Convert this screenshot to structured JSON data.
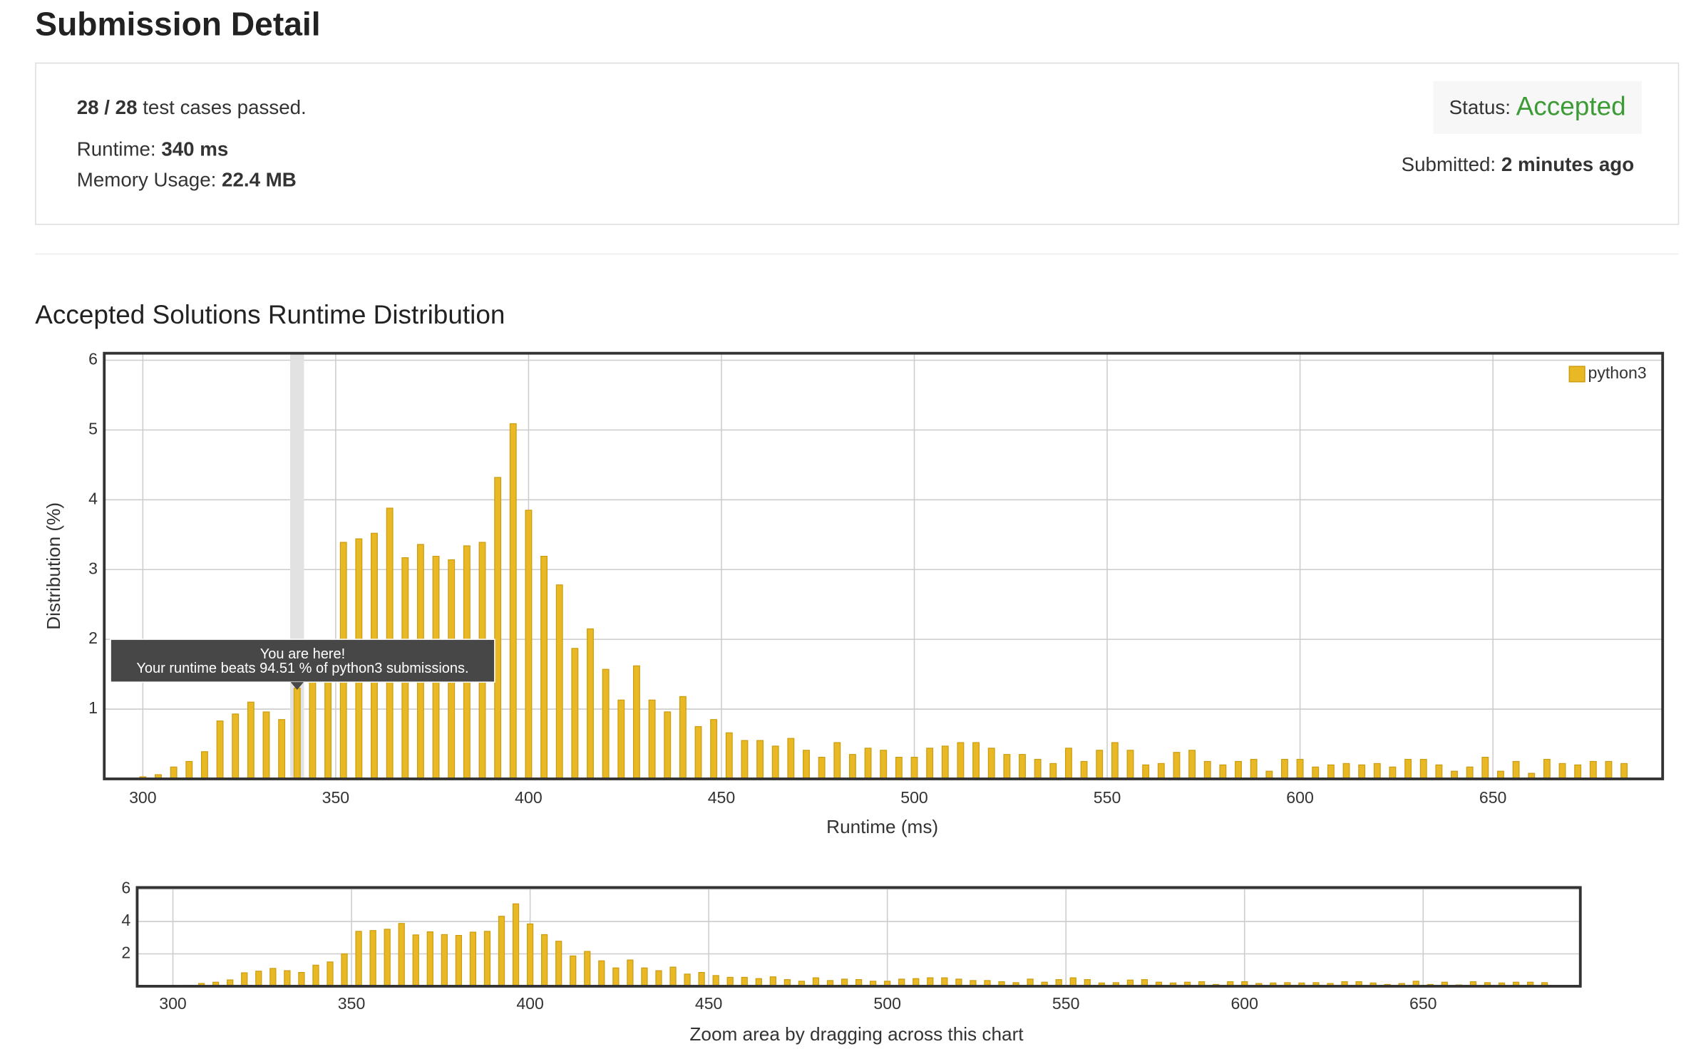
{
  "page": {
    "title": "Submission Detail",
    "passed": "28 / 28",
    "passed_suffix": "test cases passed.",
    "runtime_label": "Runtime:",
    "runtime_value": "340 ms",
    "memory_label": "Memory Usage:",
    "memory_value": "22.4 MB",
    "status_label": "Status:",
    "status_value": "Accepted",
    "submitted_label": "Submitted:",
    "submitted_value": "2 minutes ago",
    "section_title": "Accepted Solutions Runtime Distribution"
  },
  "chart_data": [
    {
      "type": "bar",
      "xlabel": "Runtime (ms)",
      "ylabel": "Distribution (%)",
      "x": [
        300,
        304,
        308,
        312,
        316,
        320,
        324,
        328,
        332,
        336,
        340,
        344,
        348,
        352,
        356,
        360,
        364,
        368,
        372,
        376,
        380,
        384,
        388,
        392,
        396,
        400,
        404,
        408,
        412,
        416,
        420,
        424,
        428,
        432,
        436,
        440,
        444,
        448,
        452,
        456,
        460,
        464,
        468,
        472,
        476,
        480,
        484,
        488,
        492,
        496,
        500,
        504,
        508,
        512,
        516,
        520,
        524,
        528,
        532,
        536,
        540,
        544,
        548,
        552,
        556,
        560,
        564,
        568,
        572,
        576,
        580,
        584,
        588,
        592,
        596,
        600,
        604,
        608,
        612,
        616,
        620,
        624,
        628,
        632,
        636,
        640,
        644,
        648,
        652,
        656,
        660,
        664,
        668,
        672,
        676,
        680,
        684
      ],
      "series": [
        {
          "name": "python3",
          "color": "#e8b925",
          "values": [
            0.03,
            0.06,
            0.17,
            0.25,
            0.39,
            0.83,
            0.93,
            1.1,
            0.96,
            0.85,
            1.3,
            1.5,
            2.0,
            3.39,
            3.44,
            3.52,
            3.88,
            3.17,
            3.36,
            3.19,
            3.14,
            3.34,
            3.39,
            4.32,
            5.09,
            3.85,
            3.19,
            2.78,
            1.87,
            2.15,
            1.57,
            1.13,
            1.62,
            1.13,
            0.96,
            1.18,
            0.75,
            0.85,
            0.66,
            0.55,
            0.55,
            0.47,
            0.58,
            0.41,
            0.31,
            0.52,
            0.35,
            0.44,
            0.41,
            0.31,
            0.31,
            0.44,
            0.47,
            0.52,
            0.52,
            0.44,
            0.35,
            0.35,
            0.28,
            0.22,
            0.44,
            0.25,
            0.41,
            0.52,
            0.41,
            0.2,
            0.22,
            0.38,
            0.41,
            0.25,
            0.2,
            0.25,
            0.28,
            0.11,
            0.28,
            0.28,
            0.17,
            0.2,
            0.22,
            0.2,
            0.22,
            0.17,
            0.28,
            0.28,
            0.2,
            0.11,
            0.17,
            0.31,
            0.11,
            0.25,
            0.08,
            0.28,
            0.22,
            0.2,
            0.25,
            0.25,
            0.22
          ]
        }
      ],
      "xlim": [
        290,
        694
      ],
      "ylim": [
        0,
        6.1
      ],
      "xticks": [
        300,
        350,
        400,
        450,
        500,
        550,
        600,
        650
      ],
      "yticks": [
        1,
        2,
        3,
        4,
        5,
        6
      ],
      "grid": true,
      "legend": "upper right",
      "highlight_x": 340,
      "tooltip": [
        "You are here!",
        "Your runtime beats 94.51 % of python3 submissions."
      ]
    },
    {
      "type": "bar",
      "xlabel": "Zoom area by dragging across this chart",
      "xlim": [
        290,
        694
      ],
      "ylim": [
        0,
        6.1
      ],
      "xticks": [
        300,
        350,
        400,
        450,
        500,
        550,
        600,
        650
      ],
      "yticks": [
        2,
        4,
        6
      ],
      "grid": true
    }
  ]
}
